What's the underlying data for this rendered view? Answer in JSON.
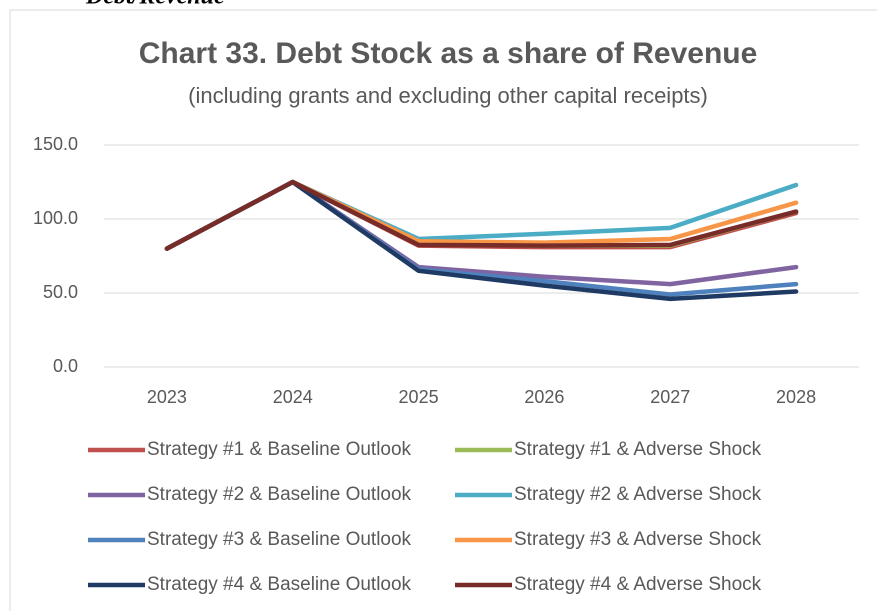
{
  "heading": "Debt/Revenue",
  "chart_data": {
    "type": "line",
    "title": "Chart 33. Debt Stock as a share of Revenue",
    "subtitle": "(including grants and excluding other capital receipts)",
    "categories": [
      "2023",
      "2024",
      "2025",
      "2026",
      "2027",
      "2028"
    ],
    "series": [
      {
        "name": "Strategy #1 & Baseline Outlook",
        "color": "#c0504d",
        "values": [
          80,
          125,
          82,
          81,
          81,
          104
        ]
      },
      {
        "name": "Strategy #1 & Adverse Shock",
        "color": "#9bbb59",
        "values": [
          80,
          125,
          83,
          82,
          82,
          105
        ]
      },
      {
        "name": "Strategy #2 & Baseline Outlook",
        "color": "#8064a2",
        "values": [
          80,
          125,
          67.5,
          61,
          56,
          67.5
        ]
      },
      {
        "name": "Strategy #2 & Adverse Shock",
        "color": "#4bacc6",
        "values": [
          80,
          125,
          86.5,
          90,
          94,
          123
        ]
      },
      {
        "name": "Strategy #3 & Baseline Outlook",
        "color": "#4f81bd",
        "values": [
          80,
          125,
          66,
          58,
          49,
          56
        ]
      },
      {
        "name": "Strategy #3 & Adverse Shock",
        "color": "#f79646",
        "values": [
          80,
          125,
          85,
          84,
          86.5,
          111
        ]
      },
      {
        "name": "Strategy #4 & Baseline Outlook",
        "color": "#1f3b63",
        "values": [
          80,
          125,
          65,
          55,
          46,
          51
        ]
      },
      {
        "name": "Strategy #4 & Adverse Shock",
        "color": "#772c2a",
        "values": [
          80,
          125,
          82.5,
          82,
          82.5,
          105
        ]
      }
    ],
    "ylim": [
      0,
      150
    ],
    "yticks": [
      {
        "value": 0,
        "label": "0.0"
      },
      {
        "value": 50,
        "label": "50.0"
      },
      {
        "value": 100,
        "label": "100.0"
      },
      {
        "value": 150,
        "label": "150.0"
      }
    ],
    "grid": true,
    "legend": "bottom"
  }
}
